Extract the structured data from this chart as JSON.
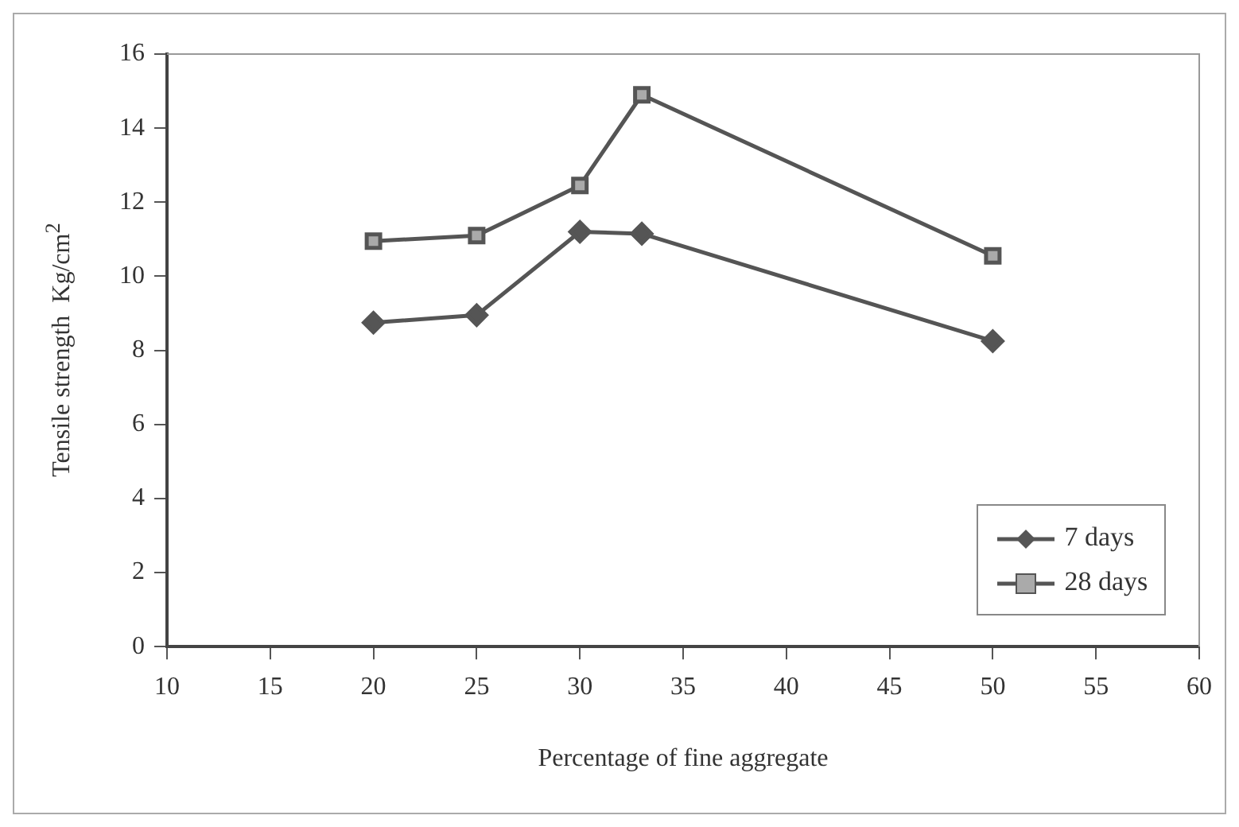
{
  "chart_data": {
    "type": "line",
    "xlabel": "Percentage of fine aggregate",
    "ylabel": "Tensile strength  Kg/cm$^{2}$",
    "x": [
      20,
      25,
      30,
      33,
      50
    ],
    "series": [
      {
        "name": "7 days",
        "color": "#555555",
        "marker": "diamond",
        "values": [
          8.75,
          8.95,
          11.2,
          11.15,
          8.25
        ]
      },
      {
        "name": "28 days",
        "color": "#555555",
        "marker": "square",
        "values": [
          10.95,
          11.1,
          12.45,
          14.9,
          10.55
        ]
      }
    ],
    "xlim": [
      10,
      60
    ],
    "xticks": [
      10,
      15,
      20,
      25,
      30,
      35,
      40,
      45,
      50,
      55,
      60
    ],
    "ylim": [
      0,
      16
    ],
    "yticks": [
      0,
      2,
      4,
      6,
      8,
      10,
      12,
      14,
      16
    ],
    "grid": false,
    "legend": "bottom right",
    "line_style": "solid"
  }
}
